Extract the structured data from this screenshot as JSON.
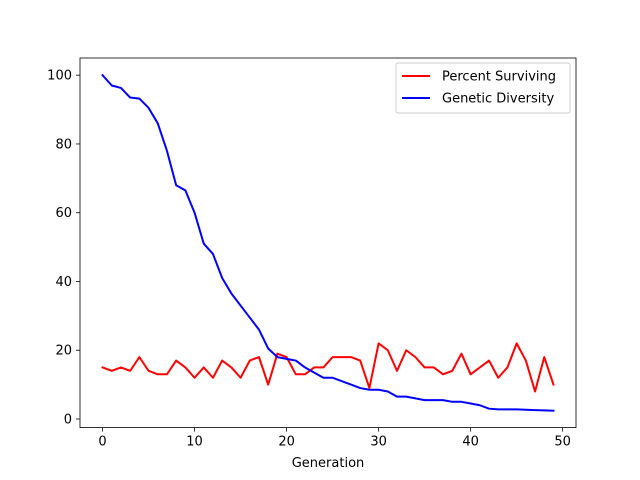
{
  "chart_data": {
    "type": "line",
    "title": "",
    "xlabel": "Generation",
    "ylabel": "",
    "xlim": [
      -2.45,
      51.45
    ],
    "ylim": [
      -2.5,
      105
    ],
    "xticks": [
      0,
      10,
      20,
      30,
      40,
      50
    ],
    "yticks": [
      0,
      20,
      40,
      60,
      80,
      100
    ],
    "grid": false,
    "legend_position": "top-right",
    "x": [
      0,
      1,
      2,
      3,
      4,
      5,
      6,
      7,
      8,
      9,
      10,
      11,
      12,
      13,
      14,
      15,
      16,
      17,
      18,
      19,
      20,
      21,
      22,
      23,
      24,
      25,
      26,
      27,
      28,
      29,
      30,
      31,
      32,
      33,
      34,
      35,
      36,
      37,
      38,
      39,
      40,
      41,
      42,
      43,
      44,
      45,
      46,
      47,
      48,
      49
    ],
    "series": [
      {
        "name": "Percent Surviving",
        "color": "#ff0000",
        "values": [
          15,
          14,
          15,
          14,
          18,
          14,
          13,
          13,
          17,
          15,
          12,
          15,
          12,
          17,
          15,
          12,
          17,
          18,
          10,
          19,
          18,
          13,
          13,
          15,
          15,
          18,
          18,
          18,
          17,
          9,
          22,
          20,
          14,
          20,
          18,
          15,
          15,
          13,
          14,
          19,
          13,
          15,
          17,
          12,
          15,
          22,
          17,
          8,
          18,
          10
        ]
      },
      {
        "name": "Genetic Diversity",
        "color": "#0000ff",
        "values": [
          100,
          97,
          96.3,
          93.5,
          93.2,
          90.5,
          86,
          78,
          68,
          66.5,
          60,
          51,
          48,
          41,
          36.5,
          33,
          29.5,
          26,
          20.5,
          18,
          17.5,
          17,
          15,
          13.5,
          12,
          12,
          11,
          10,
          9,
          8.5,
          8.5,
          8,
          6.5,
          6.5,
          6,
          5.5,
          5.5,
          5.5,
          5,
          5,
          4.5,
          4,
          3,
          2.8,
          2.8,
          2.8,
          2.7,
          2.6,
          2.5,
          2.4
        ]
      }
    ]
  }
}
